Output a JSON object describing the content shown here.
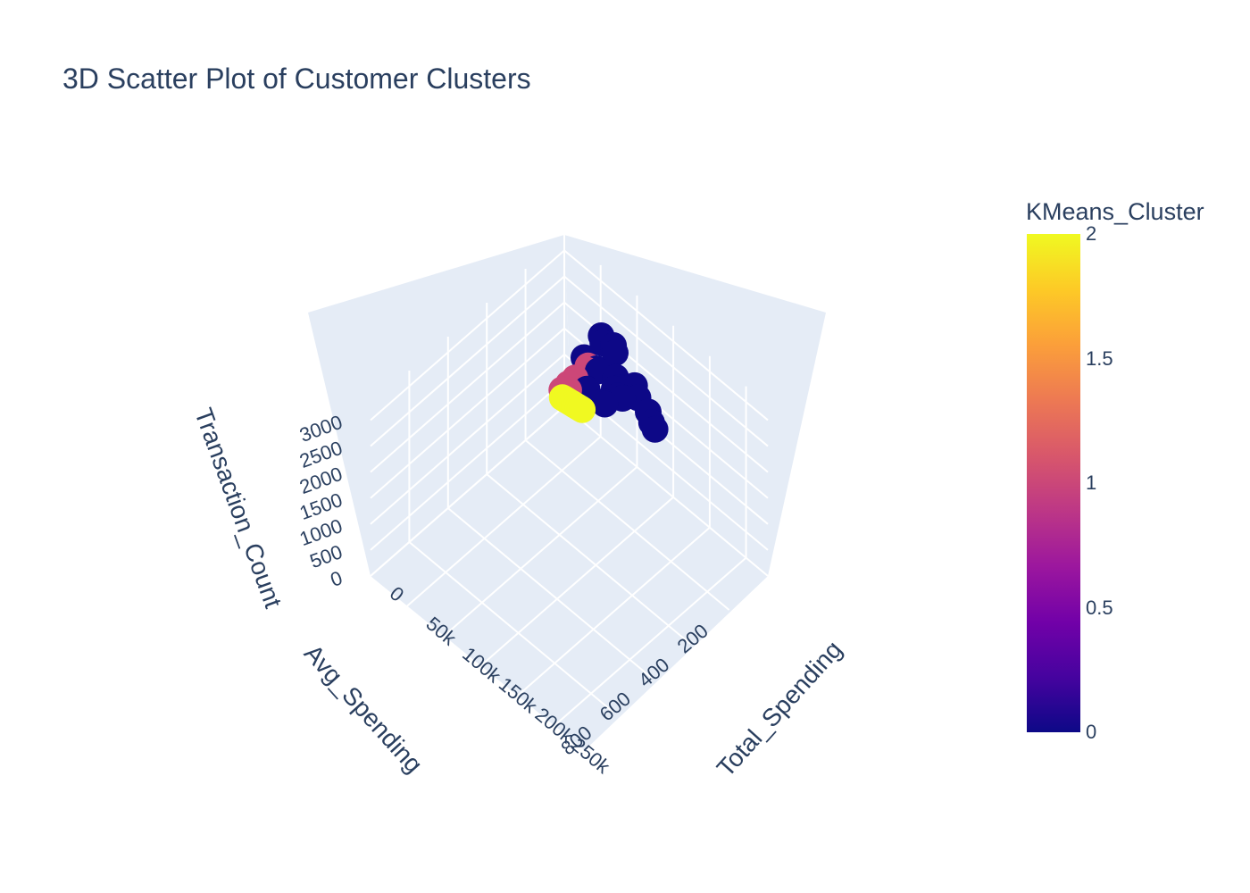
{
  "chart_data": {
    "type": "scatter3d",
    "title": "3D Scatter Plot of Customer Clusters",
    "axes": {
      "x": {
        "label": "Total_Spending",
        "range": [
          0,
          280000
        ],
        "ticks": [
          "0",
          "50k",
          "100k",
          "150k",
          "200k",
          "250k"
        ]
      },
      "y": {
        "label": "Avg_Spending",
        "range": [
          0,
          1000
        ],
        "ticks": [
          "200",
          "400",
          "600",
          "800"
        ]
      },
      "z": {
        "label": "Transaction_Count",
        "range": [
          0,
          3300
        ],
        "ticks": [
          "0",
          "500",
          "1000",
          "1500",
          "2000",
          "2500",
          "3000"
        ]
      }
    },
    "colorbar": {
      "title": "KMeans_Cluster",
      "ticks": [
        "0",
        "0.5",
        "1",
        "1.5",
        "2"
      ],
      "range": [
        0,
        2
      ],
      "colors": [
        "#0d0887",
        "#46039f",
        "#7201a8",
        "#9c179e",
        "#bd3786",
        "#d8576b",
        "#ed7953",
        "#fb9f3a",
        "#fdca26",
        "#f0f921"
      ]
    },
    "clusters": [
      {
        "cluster": 0,
        "color": "#0d0887",
        "points": [
          [
            200000,
            300,
            3000
          ],
          [
            210000,
            320,
            3050
          ],
          [
            190000,
            280,
            3020
          ],
          [
            150000,
            280,
            3020
          ],
          [
            160000,
            300,
            3000
          ],
          [
            140000,
            260,
            3040
          ],
          [
            150000,
            200,
            2800
          ],
          [
            160000,
            220,
            2750
          ],
          [
            130000,
            230,
            2600
          ],
          [
            140000,
            250,
            2650
          ],
          [
            120000,
            250,
            2300
          ],
          [
            125000,
            260,
            2350
          ],
          [
            110000,
            150,
            2800
          ],
          [
            105000,
            140,
            2850
          ],
          [
            100000,
            200,
            2500
          ],
          [
            95000,
            190,
            2450
          ],
          [
            90000,
            220,
            2100
          ],
          [
            92000,
            230,
            2150
          ],
          [
            85000,
            120,
            2600
          ],
          [
            80000,
            110,
            2650
          ],
          [
            75000,
            180,
            2400
          ]
        ]
      },
      {
        "cluster": 1,
        "color": "#cc4778",
        "points": [
          [
            70000,
            140,
            2050
          ],
          [
            72000,
            150,
            2020
          ],
          [
            60000,
            170,
            1800
          ],
          [
            62000,
            180,
            1750
          ],
          [
            50000,
            200,
            1550
          ],
          [
            48000,
            190,
            1500
          ],
          [
            35000,
            110,
            1200
          ],
          [
            38000,
            120,
            1150
          ]
        ]
      },
      {
        "cluster": 2,
        "color": "#f0f921",
        "points": [
          [
            30000,
            20,
            350
          ],
          [
            27000,
            19,
            335
          ],
          [
            24000,
            18,
            320
          ],
          [
            21000,
            17,
            305
          ],
          [
            18000,
            16,
            290
          ],
          [
            15000,
            15,
            275
          ],
          [
            12000,
            14,
            260
          ],
          [
            9000,
            13,
            245
          ],
          [
            6000,
            12,
            230
          ],
          [
            3000,
            11,
            215
          ],
          [
            0,
            10,
            200
          ]
        ]
      }
    ]
  }
}
